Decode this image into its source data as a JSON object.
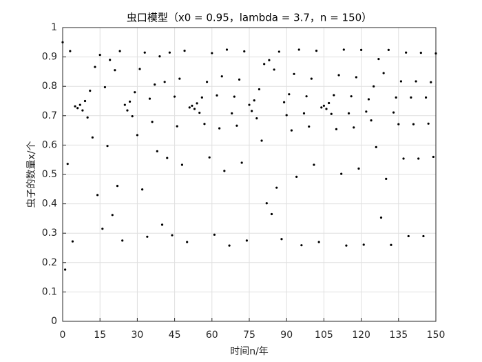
{
  "chart_data": {
    "type": "scatter",
    "title": "虫口模型（x0 = 0.95，lambda = 3.7，n = 150）",
    "x_label": "时间n/年",
    "y_label": "虫子的数量x/个",
    "x": [
      0,
      1,
      2,
      3,
      4,
      5,
      6,
      7,
      8,
      9,
      10,
      11,
      12,
      13,
      14,
      15,
      16,
      17,
      18,
      19,
      20,
      21,
      22,
      23,
      24,
      25,
      26,
      27,
      28,
      29,
      30,
      31,
      32,
      33,
      34,
      35,
      36,
      37,
      38,
      39,
      40,
      41,
      42,
      43,
      44,
      45,
      46,
      47,
      48,
      49,
      50,
      51,
      52,
      53,
      54,
      55,
      56,
      57,
      58,
      59,
      60,
      61,
      62,
      63,
      64,
      65,
      66,
      67,
      68,
      69,
      70,
      71,
      72,
      73,
      74,
      75,
      76,
      77,
      78,
      79,
      80,
      81,
      82,
      83,
      84,
      85,
      86,
      87,
      88,
      89,
      90,
      91,
      92,
      93,
      94,
      95,
      96,
      97,
      98,
      99,
      100,
      101,
      102,
      103,
      104,
      105,
      106,
      107,
      108,
      109,
      110,
      111,
      112,
      113,
      114,
      115,
      116,
      117,
      118,
      119,
      120,
      121,
      122,
      123,
      124,
      125,
      126,
      127,
      128,
      129,
      130,
      131,
      132,
      133,
      134,
      135,
      136,
      137,
      138,
      139,
      140,
      141,
      142,
      143,
      144,
      145,
      146,
      147,
      148,
      149,
      150
    ],
    "values": [
      0.95,
      0.176,
      0.536,
      0.92,
      0.272,
      0.732,
      0.726,
      0.737,
      0.718,
      0.75,
      0.694,
      0.785,
      0.626,
      0.866,
      0.43,
      0.907,
      0.315,
      0.797,
      0.597,
      0.89,
      0.362,
      0.855,
      0.461,
      0.92,
      0.275,
      0.737,
      0.718,
      0.748,
      0.698,
      0.78,
      0.634,
      0.859,
      0.449,
      0.915,
      0.288,
      0.758,
      0.679,
      0.806,
      0.579,
      0.902,
      0.329,
      0.815,
      0.556,
      0.915,
      0.293,
      0.765,
      0.664,
      0.826,
      0.533,
      0.921,
      0.27,
      0.728,
      0.734,
      0.723,
      0.742,
      0.71,
      0.762,
      0.672,
      0.815,
      0.558,
      0.913,
      0.295,
      0.769,
      0.657,
      0.834,
      0.512,
      0.925,
      0.258,
      0.708,
      0.765,
      0.666,
      0.823,
      0.54,
      0.919,
      0.275,
      0.737,
      0.716,
      0.752,
      0.691,
      0.79,
      0.615,
      0.876,
      0.402,
      0.889,
      0.365,
      0.857,
      0.455,
      0.918,
      0.28,
      0.746,
      0.702,
      0.773,
      0.65,
      0.842,
      0.492,
      0.925,
      0.259,
      0.708,
      0.766,
      0.663,
      0.826,
      0.533,
      0.921,
      0.27,
      0.728,
      0.734,
      0.723,
      0.743,
      0.706,
      0.77,
      0.654,
      0.838,
      0.502,
      0.925,
      0.258,
      0.708,
      0.766,
      0.66,
      0.831,
      0.52,
      0.924,
      0.261,
      0.714,
      0.756,
      0.684,
      0.8,
      0.593,
      0.893,
      0.353,
      0.845,
      0.485,
      0.924,
      0.26,
      0.711,
      0.762,
      0.671,
      0.817,
      0.554,
      0.915,
      0.29,
      0.762,
      0.671,
      0.817,
      0.554,
      0.914,
      0.29,
      0.762,
      0.673,
      0.814,
      0.56,
      0.912
    ],
    "color": "#000000",
    "xlim": [
      0,
      150
    ],
    "xticks": [
      0,
      15,
      30,
      45,
      60,
      75,
      90,
      105,
      120,
      135,
      150
    ],
    "ylim": [
      0,
      1
    ],
    "yticks": [
      0,
      0.1,
      0.2,
      0.3,
      0.4,
      0.5,
      0.6,
      0.7,
      0.8,
      0.9,
      1
    ],
    "grid": true
  }
}
